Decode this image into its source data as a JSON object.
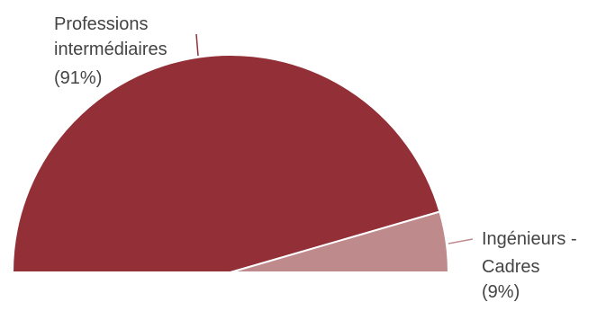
{
  "chart_data": {
    "type": "pie",
    "variant": "half-donut",
    "slices": [
      {
        "label_lines": [
          "Professions",
          "intermédiaires",
          "(91%)"
        ],
        "value": 91,
        "color": "#933037"
      },
      {
        "label_lines": [
          "Ingénieurs -",
          "Cadres",
          "(9%)"
        ],
        "value": 9,
        "color": "#bf8a8c"
      }
    ]
  }
}
